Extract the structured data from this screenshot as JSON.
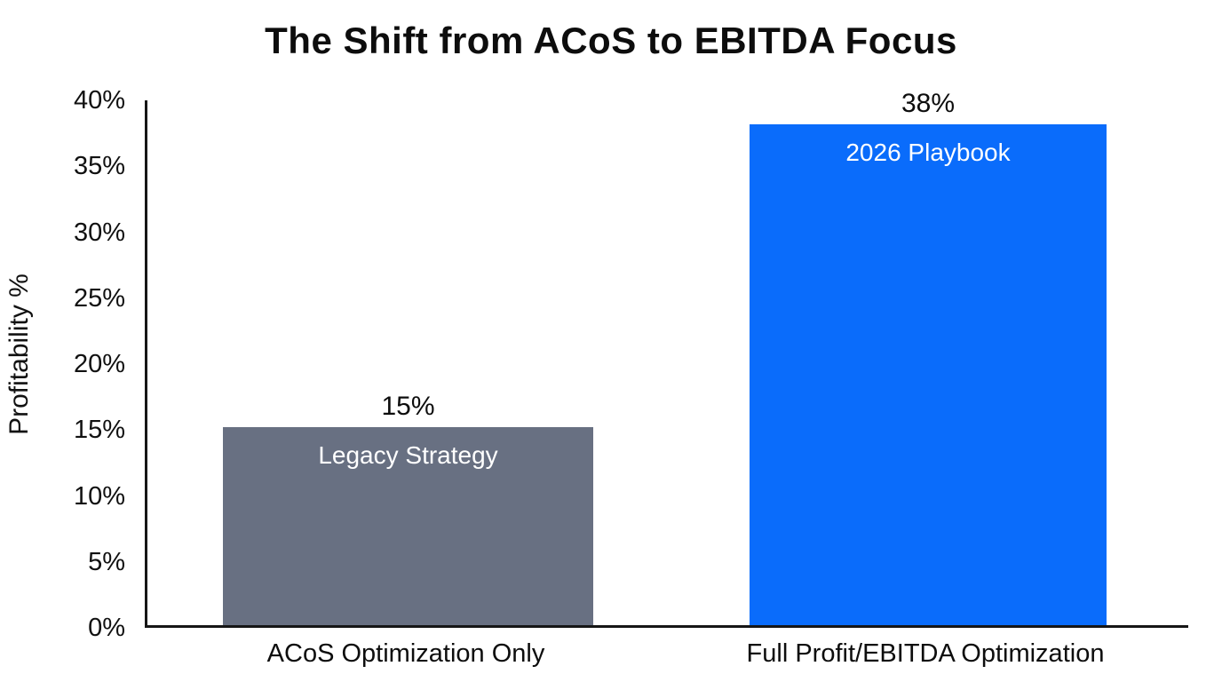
{
  "title": "The Shift from ACoS to EBITDA Focus",
  "colors": {
    "background": "#ffffff",
    "axis": "#161616",
    "title_text": "#0d0d0d",
    "tick_text": "#111111",
    "bar_inner_text": "#ffffff",
    "legacy_bar": "#687082",
    "playbook_bar": "#0a6cfb"
  },
  "chart_data": {
    "type": "bar",
    "title": "The Shift from ACoS to EBITDA Focus",
    "xlabel": "",
    "ylabel": "Profitability %",
    "ylim": [
      0,
      40
    ],
    "ytick_step": 5,
    "grid": false,
    "legend": "none",
    "categories": [
      "ACoS Optimization Only",
      "Full Profit/EBITDA Optimization"
    ],
    "values": [
      15,
      38
    ],
    "value_labels": [
      "15%",
      "38%"
    ],
    "bar_inner_labels": [
      "Legacy Strategy",
      "2026 Playbook"
    ],
    "bar_colors": [
      "#687082",
      "#0a6cfb"
    ],
    "ytick_labels": [
      "0%",
      "5%",
      "10%",
      "15%",
      "20%",
      "25%",
      "30%",
      "35%",
      "40%"
    ]
  }
}
